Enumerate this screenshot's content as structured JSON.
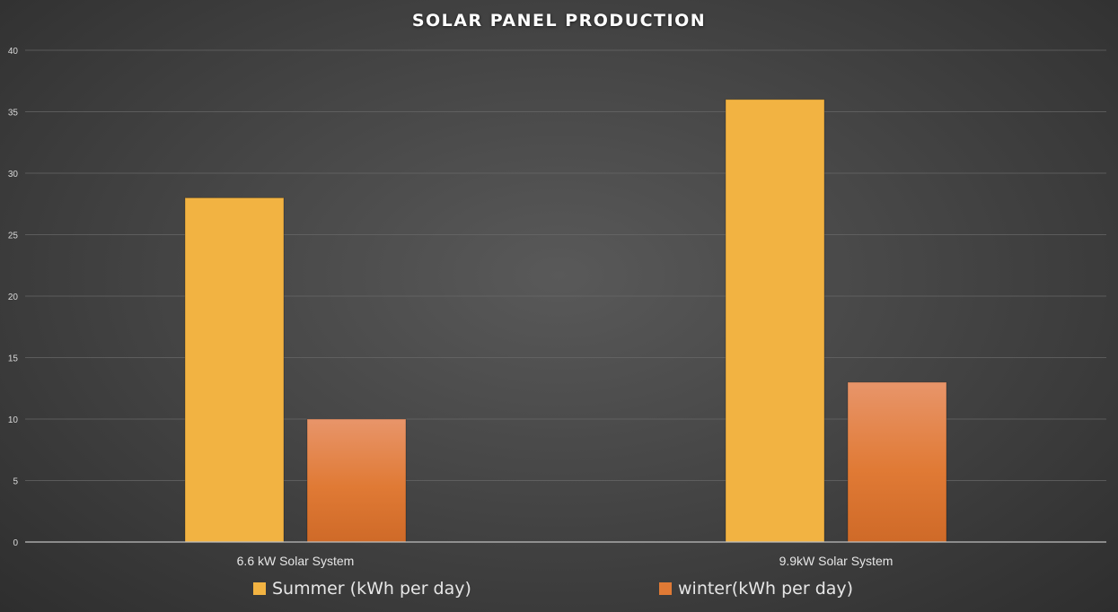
{
  "chart_data": {
    "type": "bar",
    "title": "SOLAR PANEL PRODUCTION",
    "categories": [
      "6.6 kW Solar System",
      "9.9kW Solar System"
    ],
    "series": [
      {
        "name": "Summer (kWh per day)",
        "values": [
          28,
          36
        ],
        "color": "#f2b342"
      },
      {
        "name": "winter(kWh per day)",
        "values": [
          10,
          13
        ],
        "color": "#e07a35"
      }
    ],
    "xlabel": "",
    "ylabel": "",
    "ylim": [
      0,
      40
    ],
    "yticks": [
      "0",
      "5",
      "10",
      "15",
      "20",
      "25",
      "30",
      "35",
      "40"
    ],
    "grid": true,
    "legend_position": "bottom",
    "background": "#464646",
    "gridline_color": "#6a6a6a"
  }
}
